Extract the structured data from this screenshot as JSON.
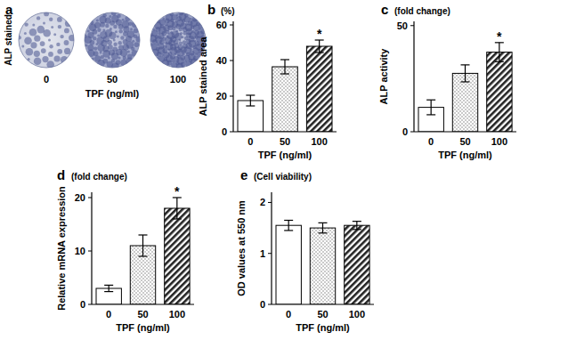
{
  "image_panel": {
    "title": "a",
    "caption": "ALP stained",
    "categories": [
      "0",
      "50",
      "100"
    ],
    "x_label": "TPF (ng/ml)"
  },
  "chart_data": [
    {
      "type": "bar",
      "title": "b",
      "subtitle": "(%)",
      "y_label": "ALP stained area",
      "x_label": "TPF (ng/ml)",
      "categories": [
        "0",
        "50",
        "100"
      ],
      "values": [
        17.5,
        36.5,
        48
      ],
      "errors": [
        3,
        4,
        3.5
      ],
      "colors": [
        "#ffffff",
        "#d0d0d0",
        "#222222"
      ],
      "ylim": [
        0,
        62
      ],
      "yticks": [
        0,
        20,
        40,
        60
      ],
      "annotations": [
        {
          "index": 2,
          "text": "*"
        }
      ]
    },
    {
      "type": "bar",
      "title": "c",
      "subtitle": "(fold change)",
      "y_label": "ALP activity",
      "x_label": "TPF (ng/ml)",
      "categories": [
        "0",
        "50",
        "100"
      ],
      "values": [
        11.5,
        27.5,
        37.5
      ],
      "errors": [
        3.5,
        4,
        4.5
      ],
      "colors": [
        "#ffffff",
        "#d0d0d0",
        "#222222"
      ],
      "ylim": [
        0,
        52
      ],
      "yticks": [
        0,
        50
      ],
      "annotations": [
        {
          "index": 2,
          "text": "*"
        }
      ]
    },
    {
      "type": "bar",
      "title": "d",
      "subtitle": "(fold change)",
      "y_label": "Relative mRNA expression",
      "x_label": "TPF (ng/ml)",
      "categories": [
        "0",
        "50",
        "100"
      ],
      "values": [
        3,
        11,
        18
      ],
      "errors": [
        0.6,
        2,
        2
      ],
      "colors": [
        "#ffffff",
        "#d0d0d0",
        "#222222"
      ],
      "ylim": [
        0,
        21
      ],
      "yticks": [
        0,
        10,
        20
      ],
      "annotations": [
        {
          "index": 2,
          "text": "*"
        }
      ]
    },
    {
      "type": "bar",
      "title": "e",
      "subtitle": "(Cell viability)",
      "y_label": "OD values at 550 nm",
      "x_label": "TPF (ng/ml)",
      "categories": [
        "0",
        "50",
        "100"
      ],
      "values": [
        1.55,
        1.5,
        1.55
      ],
      "errors": [
        0.1,
        0.1,
        0.08
      ],
      "colors": [
        "#ffffff",
        "#d0d0d0",
        "#222222"
      ],
      "ylim": [
        0,
        2.2
      ],
      "yticks": [
        0,
        1,
        2
      ],
      "annotations": []
    }
  ]
}
